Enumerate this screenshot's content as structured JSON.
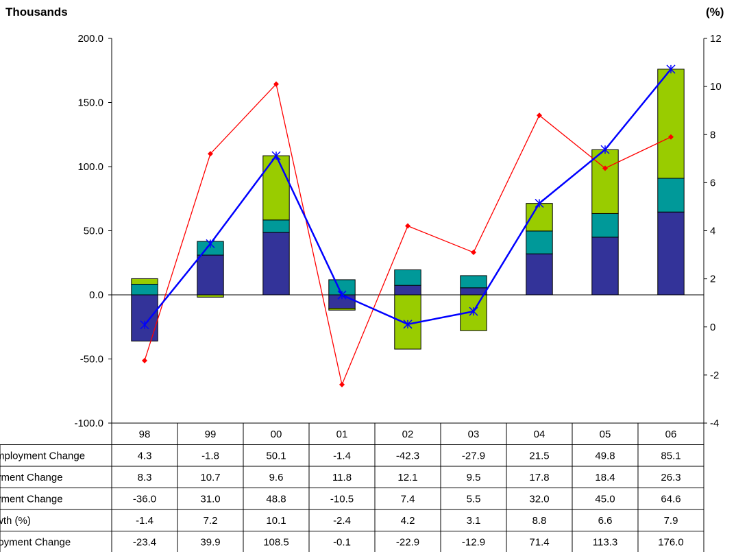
{
  "chart_data": {
    "type": "bar",
    "left_axis_title": "Thousands",
    "right_axis_title": "(%)",
    "categories": [
      "98",
      "99",
      "00",
      "01",
      "02",
      "03",
      "04",
      "05",
      "06"
    ],
    "y_left": {
      "min": -100,
      "max": 200,
      "ticks": [
        "200.0",
        "150.0",
        "100.0",
        "50.0",
        "0.0",
        "-50.0",
        "-100.0"
      ],
      "tick_values": [
        200,
        150,
        100,
        50,
        0,
        -50,
        -100
      ]
    },
    "y_right": {
      "min": -4,
      "max": 12,
      "ticks": [
        "12",
        "10",
        "8",
        "6",
        "4",
        "2",
        "0",
        "-2",
        "-4"
      ],
      "tick_values": [
        12,
        10,
        8,
        6,
        4,
        2,
        0,
        -2,
        -4
      ]
    },
    "grid": false,
    "series": [
      {
        "name": "mployment Change",
        "kind": "stacked-bar",
        "axis": "left",
        "color": "#99CC00",
        "values": [
          4.3,
          -1.8,
          50.1,
          -1.4,
          -42.3,
          -27.9,
          21.5,
          49.8,
          85.1
        ],
        "labels": [
          "4.3",
          "-1.8",
          "50.1",
          "-1.4",
          "-42.3",
          "-27.9",
          "21.5",
          "49.8",
          "85.1"
        ]
      },
      {
        "name": "yment Change",
        "kind": "stacked-bar",
        "axis": "left",
        "color": "#009999",
        "values": [
          8.3,
          10.7,
          9.6,
          11.8,
          12.1,
          9.5,
          17.8,
          18.4,
          26.3
        ],
        "labels": [
          "8.3",
          "10.7",
          "9.6",
          "11.8",
          "12.1",
          "9.5",
          "17.8",
          "18.4",
          "26.3"
        ]
      },
      {
        "name": "yment Change",
        "kind": "stacked-bar",
        "axis": "left",
        "color": "#333399",
        "values": [
          -36.0,
          31.0,
          48.8,
          -10.5,
          7.4,
          5.5,
          32.0,
          45.0,
          64.6
        ],
        "labels": [
          "-36.0",
          "31.0",
          "48.8",
          "-10.5",
          "7.4",
          "5.5",
          "32.0",
          "45.0",
          "64.6"
        ]
      },
      {
        "name": "wth (%)",
        "kind": "line",
        "axis": "right",
        "color": "#FF0000",
        "marker": "diamond",
        "values": [
          -1.4,
          7.2,
          10.1,
          -2.4,
          4.2,
          3.1,
          8.8,
          6.6,
          7.9
        ],
        "labels": [
          "-1.4",
          "7.2",
          "10.1",
          "-2.4",
          "4.2",
          "3.1",
          "8.8",
          "6.6",
          "7.9"
        ]
      },
      {
        "name": "loyment Change",
        "kind": "line",
        "axis": "left",
        "color": "#0000FF",
        "marker": "asterisk",
        "values": [
          -23.4,
          39.9,
          108.5,
          -0.1,
          -22.9,
          -12.9,
          71.4,
          113.3,
          176.0
        ],
        "labels": [
          "-23.4",
          "39.9",
          "108.5",
          "-0.1",
          "-22.9",
          "-12.9",
          "71.4",
          "113.3",
          "176.0"
        ]
      }
    ],
    "table_row_order": [
      0,
      1,
      2,
      3,
      4
    ]
  }
}
